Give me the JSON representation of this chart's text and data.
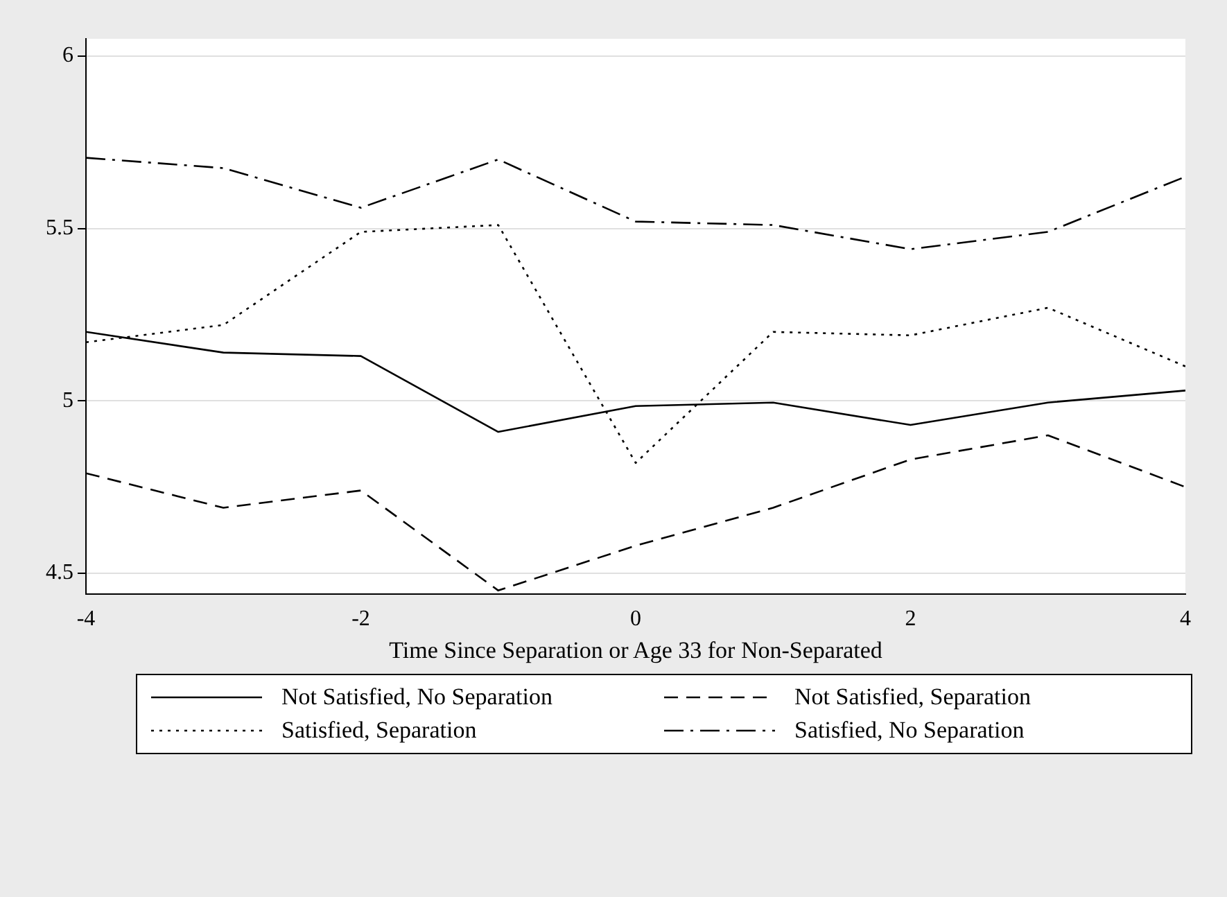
{
  "chart_data": {
    "type": "line",
    "xlabel": "Time Since Separation or Age 33 for Non-Separated",
    "x": [
      -4,
      -3,
      -2,
      -1,
      0,
      1,
      2,
      3,
      4
    ],
    "series": [
      {
        "name": "Not Satisfied, No Separation",
        "color": "#000000",
        "line_style": "solid",
        "values": [
          5.2,
          5.14,
          5.13,
          4.91,
          4.985,
          4.995,
          4.93,
          4.995,
          5.03
        ]
      },
      {
        "name": "Not Satisfied, Separation",
        "color": "#000000",
        "line_style": "dashed",
        "values": [
          4.79,
          4.69,
          4.74,
          4.45,
          4.58,
          4.69,
          4.83,
          4.9,
          4.75
        ]
      },
      {
        "name": "Satisfied, Separation",
        "color": "#000000",
        "line_style": "dotted",
        "values": [
          5.17,
          5.22,
          5.49,
          5.51,
          4.82,
          5.2,
          5.19,
          5.27,
          5.1
        ]
      },
      {
        "name": "Satisfied, No Separation",
        "color": "#000000",
        "line_style": "dashdot",
        "values": [
          5.705,
          5.675,
          5.56,
          5.7,
          5.52,
          5.51,
          5.44,
          5.49,
          5.65
        ]
      }
    ],
    "xlim": [
      -4,
      4
    ],
    "xticks": [
      -4,
      -2,
      0,
      2,
      4
    ],
    "ylim": [
      4.44,
      6.05
    ],
    "yticks": [
      4.5,
      5,
      5.5,
      6
    ],
    "grid": "y",
    "legend": "bottom",
    "marker": "none"
  }
}
